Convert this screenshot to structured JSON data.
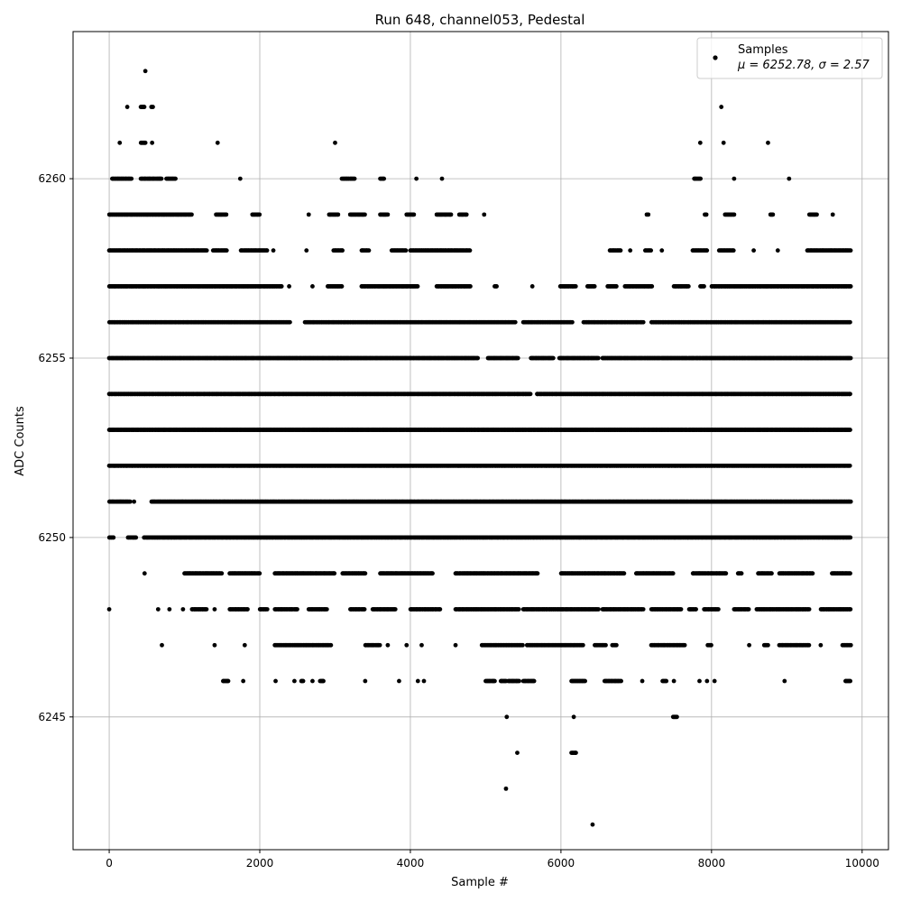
{
  "chart_data": {
    "type": "scatter",
    "title": "Run 648, channel053, Pedestal",
    "xlabel": "Sample #",
    "ylabel": "ADC Counts",
    "xlim": [
      -480,
      10350
    ],
    "ylim": [
      6241.3,
      6264.1
    ],
    "xticks": [
      0,
      2000,
      4000,
      6000,
      8000,
      10000
    ],
    "yticks": [
      6245,
      6250,
      6255,
      6260
    ],
    "grid": true,
    "legend": {
      "placement": "top-right",
      "label": "Samples",
      "stats": "μ = 6252.78, σ = 2.57"
    },
    "marker_color": "#000000",
    "n_samples": 10000,
    "bands": [
      {
        "y": 6263,
        "x_ranges": [
          [
            480,
            480
          ]
        ]
      },
      {
        "y": 6262,
        "x_ranges": [
          [
            240,
            240
          ],
          [
            420,
            470
          ],
          [
            560,
            580
          ],
          [
            8130,
            8130
          ]
        ]
      },
      {
        "y": 6261,
        "x_ranges": [
          [
            140,
            150
          ],
          [
            420,
            480
          ],
          [
            570,
            580
          ],
          [
            1440,
            1440
          ],
          [
            3000,
            3000
          ],
          [
            7850,
            7850
          ],
          [
            8160,
            8160
          ],
          [
            8750,
            8750
          ]
        ]
      },
      {
        "y": 6260,
        "x_ranges": [
          [
            40,
            300
          ],
          [
            420,
            700
          ],
          [
            760,
            880
          ],
          [
            1740,
            1740
          ],
          [
            3090,
            3260
          ],
          [
            3600,
            3650
          ],
          [
            4080,
            4080
          ],
          [
            4420,
            4420
          ],
          [
            7770,
            7860
          ],
          [
            8300,
            8300
          ],
          [
            9030,
            9030
          ]
        ]
      },
      {
        "y": 6259,
        "x_ranges": [
          [
            0,
            1100
          ],
          [
            1420,
            1560
          ],
          [
            1900,
            2000
          ],
          [
            2650,
            2650
          ],
          [
            2920,
            3050
          ],
          [
            3200,
            3400
          ],
          [
            3600,
            3700
          ],
          [
            3950,
            4050
          ],
          [
            4350,
            4550
          ],
          [
            4650,
            4750
          ],
          [
            4980,
            4980
          ],
          [
            7140,
            7160
          ],
          [
            7910,
            7940
          ],
          [
            8180,
            8300
          ],
          [
            8780,
            8820
          ],
          [
            9300,
            9400
          ],
          [
            9610,
            9610
          ]
        ]
      },
      {
        "y": 6258,
        "x_ranges": [
          [
            0,
            1300
          ],
          [
            1380,
            1560
          ],
          [
            1750,
            2100
          ],
          [
            2180,
            2180
          ],
          [
            2620,
            2620
          ],
          [
            2980,
            3100
          ],
          [
            3350,
            3450
          ],
          [
            3750,
            3950
          ],
          [
            4000,
            4800
          ],
          [
            6650,
            6800
          ],
          [
            6920,
            6920
          ],
          [
            7120,
            7200
          ],
          [
            7340,
            7340
          ],
          [
            7750,
            7950
          ],
          [
            8100,
            8300
          ],
          [
            8560,
            8560
          ],
          [
            8880,
            8880
          ],
          [
            9270,
            9850
          ]
        ]
      },
      {
        "y": 6257,
        "x_ranges": [
          [
            0,
            2300
          ],
          [
            2390,
            2390
          ],
          [
            2700,
            2700
          ],
          [
            2900,
            3100
          ],
          [
            3350,
            4100
          ],
          [
            4350,
            4800
          ],
          [
            5120,
            5150
          ],
          [
            5620,
            5620
          ],
          [
            5990,
            6200
          ],
          [
            6350,
            6450
          ],
          [
            6620,
            6750
          ],
          [
            6850,
            7220
          ],
          [
            7500,
            7700
          ],
          [
            7850,
            7900
          ],
          [
            8000,
            9850
          ]
        ]
      },
      {
        "y": 6256,
        "x_ranges": [
          [
            0,
            2400
          ],
          [
            2600,
            5400
          ],
          [
            5500,
            6150
          ],
          [
            6300,
            7100
          ],
          [
            7200,
            9850
          ]
        ]
      },
      {
        "y": 6255,
        "x_ranges": [
          [
            0,
            4900
          ],
          [
            5030,
            5430
          ],
          [
            5600,
            5900
          ],
          [
            5980,
            6500
          ],
          [
            6550,
            9850
          ]
        ]
      },
      {
        "y": 6254,
        "x_ranges": [
          [
            0,
            5600
          ],
          [
            5680,
            9850
          ]
        ]
      },
      {
        "y": 6253,
        "x_ranges": [
          [
            0,
            9850
          ]
        ]
      },
      {
        "y": 6252,
        "x_ranges": [
          [
            0,
            9850
          ]
        ]
      },
      {
        "y": 6251,
        "x_ranges": [
          [
            0,
            280
          ],
          [
            330,
            330
          ],
          [
            560,
            9850
          ]
        ]
      },
      {
        "y": 6250,
        "x_ranges": [
          [
            0,
            60
          ],
          [
            250,
            360
          ],
          [
            460,
            9850
          ]
        ]
      },
      {
        "y": 6249,
        "x_ranges": [
          [
            470,
            470
          ],
          [
            1000,
            1500
          ],
          [
            1600,
            2000
          ],
          [
            2200,
            3000
          ],
          [
            3100,
            3400
          ],
          [
            3600,
            4300
          ],
          [
            4600,
            5700
          ],
          [
            6000,
            6850
          ],
          [
            7000,
            7500
          ],
          [
            7750,
            8200
          ],
          [
            8350,
            8400
          ],
          [
            8620,
            8800
          ],
          [
            8900,
            9350
          ],
          [
            9600,
            9850
          ]
        ]
      },
      {
        "y": 6248,
        "x_ranges": [
          [
            0,
            0
          ],
          [
            650,
            650
          ],
          [
            800,
            800
          ],
          [
            980,
            980
          ],
          [
            1100,
            1300
          ],
          [
            1400,
            1400
          ],
          [
            1600,
            1850
          ],
          [
            2000,
            2100
          ],
          [
            2200,
            2500
          ],
          [
            2650,
            2900
          ],
          [
            3200,
            3400
          ],
          [
            3500,
            3800
          ],
          [
            4000,
            4400
          ],
          [
            4600,
            5450
          ],
          [
            5500,
            6500
          ],
          [
            6550,
            7100
          ],
          [
            7200,
            7600
          ],
          [
            7700,
            7800
          ],
          [
            7900,
            8100
          ],
          [
            8300,
            8500
          ],
          [
            8600,
            9300
          ],
          [
            9450,
            9850
          ]
        ]
      },
      {
        "y": 6247,
        "x_ranges": [
          [
            700,
            700
          ],
          [
            1400,
            1400
          ],
          [
            1800,
            1800
          ],
          [
            2200,
            2950
          ],
          [
            3400,
            3600
          ],
          [
            3700,
            3700
          ],
          [
            3950,
            3950
          ],
          [
            4150,
            4150
          ],
          [
            4600,
            4600
          ],
          [
            4950,
            5500
          ],
          [
            5550,
            6300
          ],
          [
            6450,
            6600
          ],
          [
            6680,
            6750
          ],
          [
            7200,
            7650
          ],
          [
            7950,
            8000
          ],
          [
            8500,
            8500
          ],
          [
            8700,
            8750
          ],
          [
            8900,
            9300
          ],
          [
            9450,
            9450
          ],
          [
            9740,
            9850
          ]
        ]
      },
      {
        "y": 6246,
        "x_ranges": [
          [
            1510,
            1590
          ],
          [
            1780,
            1780
          ],
          [
            2210,
            2210
          ],
          [
            2460,
            2460
          ],
          [
            2550,
            2580
          ],
          [
            2700,
            2700
          ],
          [
            2800,
            2850
          ],
          [
            3400,
            3400
          ],
          [
            3850,
            3850
          ],
          [
            4100,
            4100
          ],
          [
            4180,
            4180
          ],
          [
            5000,
            5120
          ],
          [
            5200,
            5280
          ],
          [
            5300,
            5450
          ],
          [
            5500,
            5650
          ],
          [
            6140,
            6320
          ],
          [
            6580,
            6800
          ],
          [
            7080,
            7080
          ],
          [
            7350,
            7400
          ],
          [
            7500,
            7500
          ],
          [
            7840,
            7840
          ],
          [
            7940,
            7940
          ],
          [
            8040,
            8040
          ],
          [
            8970,
            8970
          ],
          [
            9780,
            9850
          ]
        ]
      },
      {
        "y": 6245,
        "x_ranges": [
          [
            5280,
            5280
          ],
          [
            6170,
            6170
          ],
          [
            7490,
            7540
          ]
        ]
      },
      {
        "y": 6244,
        "x_ranges": [
          [
            5420,
            5420
          ],
          [
            6140,
            6200
          ]
        ]
      },
      {
        "y": 6243,
        "x_ranges": [
          [
            5270,
            5270
          ]
        ]
      },
      {
        "y": 6242,
        "x_ranges": [
          [
            6420,
            6420
          ]
        ]
      }
    ]
  }
}
